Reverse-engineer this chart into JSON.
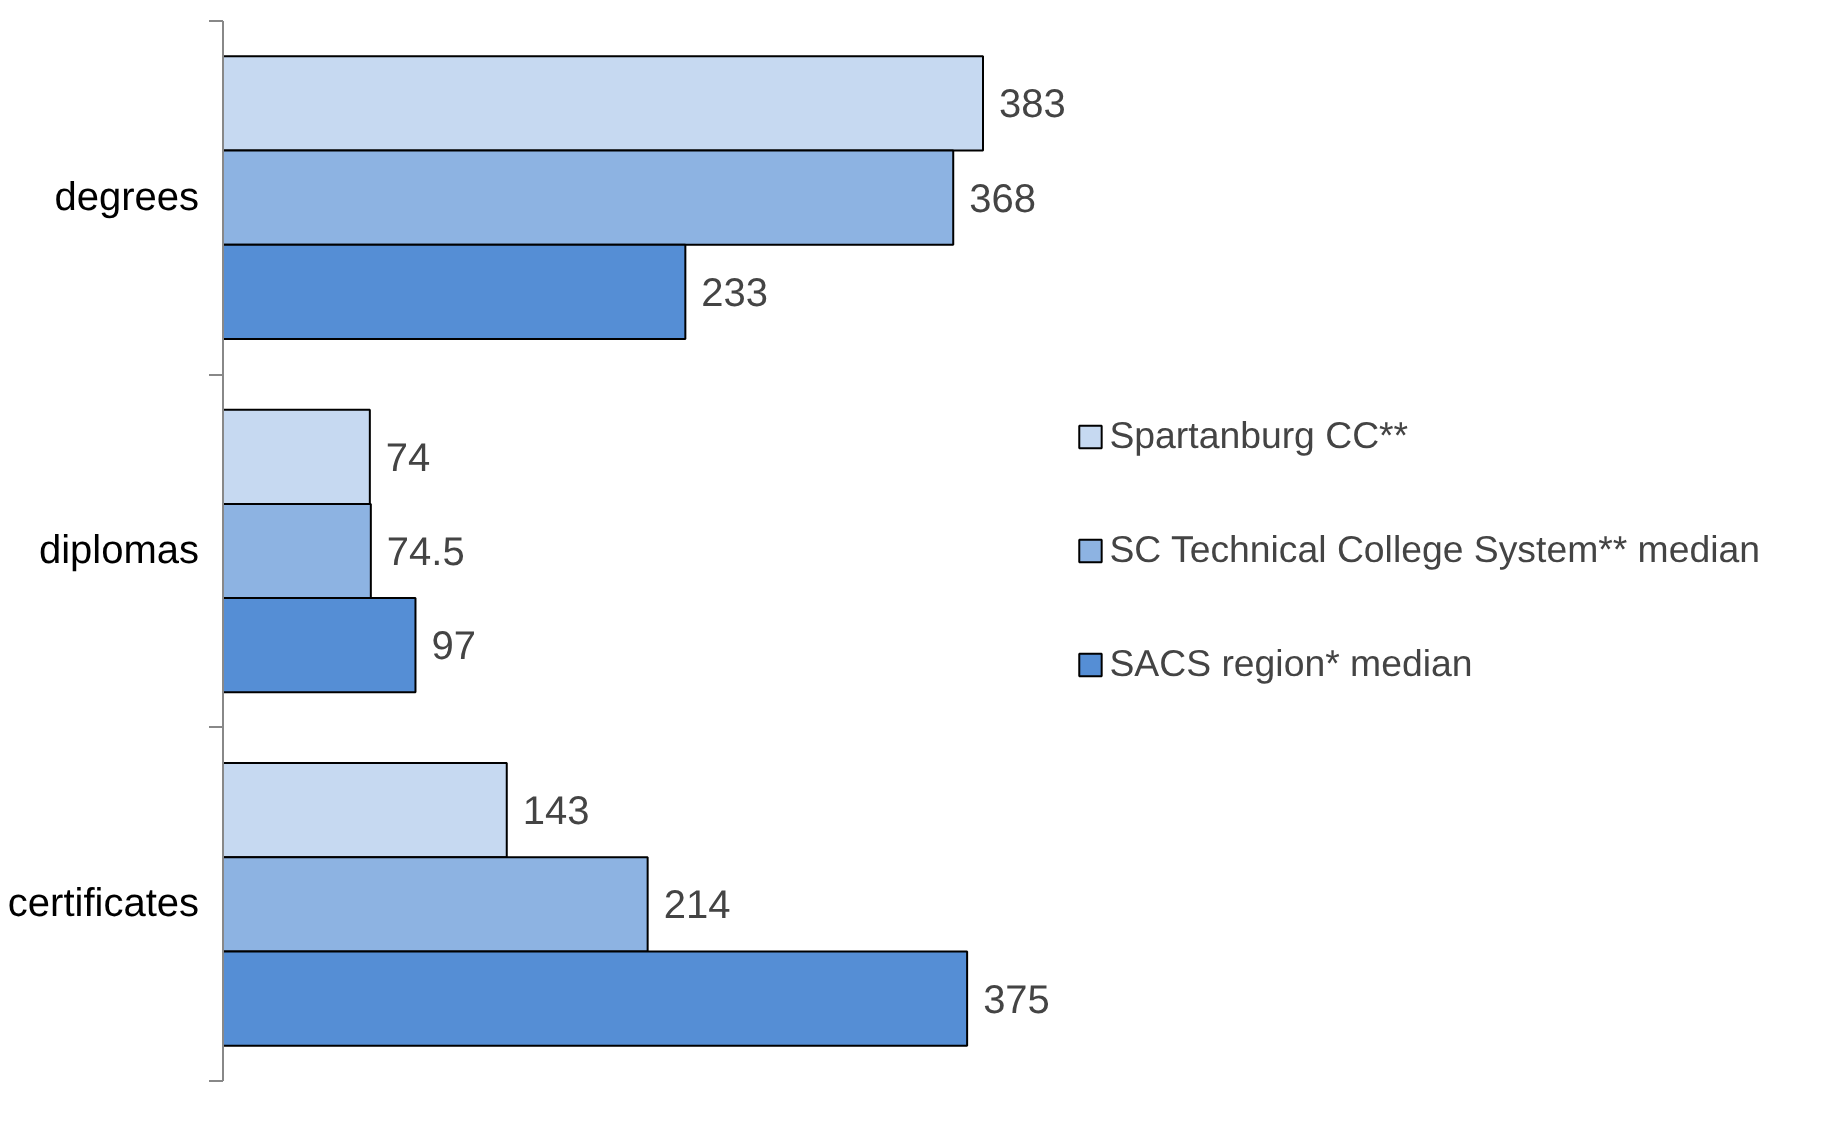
{
  "chart_data": {
    "type": "bar",
    "orientation": "horizontal",
    "categories": [
      "degrees",
      "diplomas",
      "certificates"
    ],
    "series": [
      {
        "name": "Spartanburg CC**",
        "color": "#c6d9f1",
        "values": [
          383,
          74,
          143
        ]
      },
      {
        "name": "SC Technical College System** median",
        "color": "#8db3e2",
        "values": [
          368,
          74.5,
          214
        ]
      },
      {
        "name": "SACS region* median",
        "color": "#558ed5",
        "values": [
          233,
          97,
          375
        ]
      }
    ],
    "data_labels": true,
    "legend": "right"
  }
}
